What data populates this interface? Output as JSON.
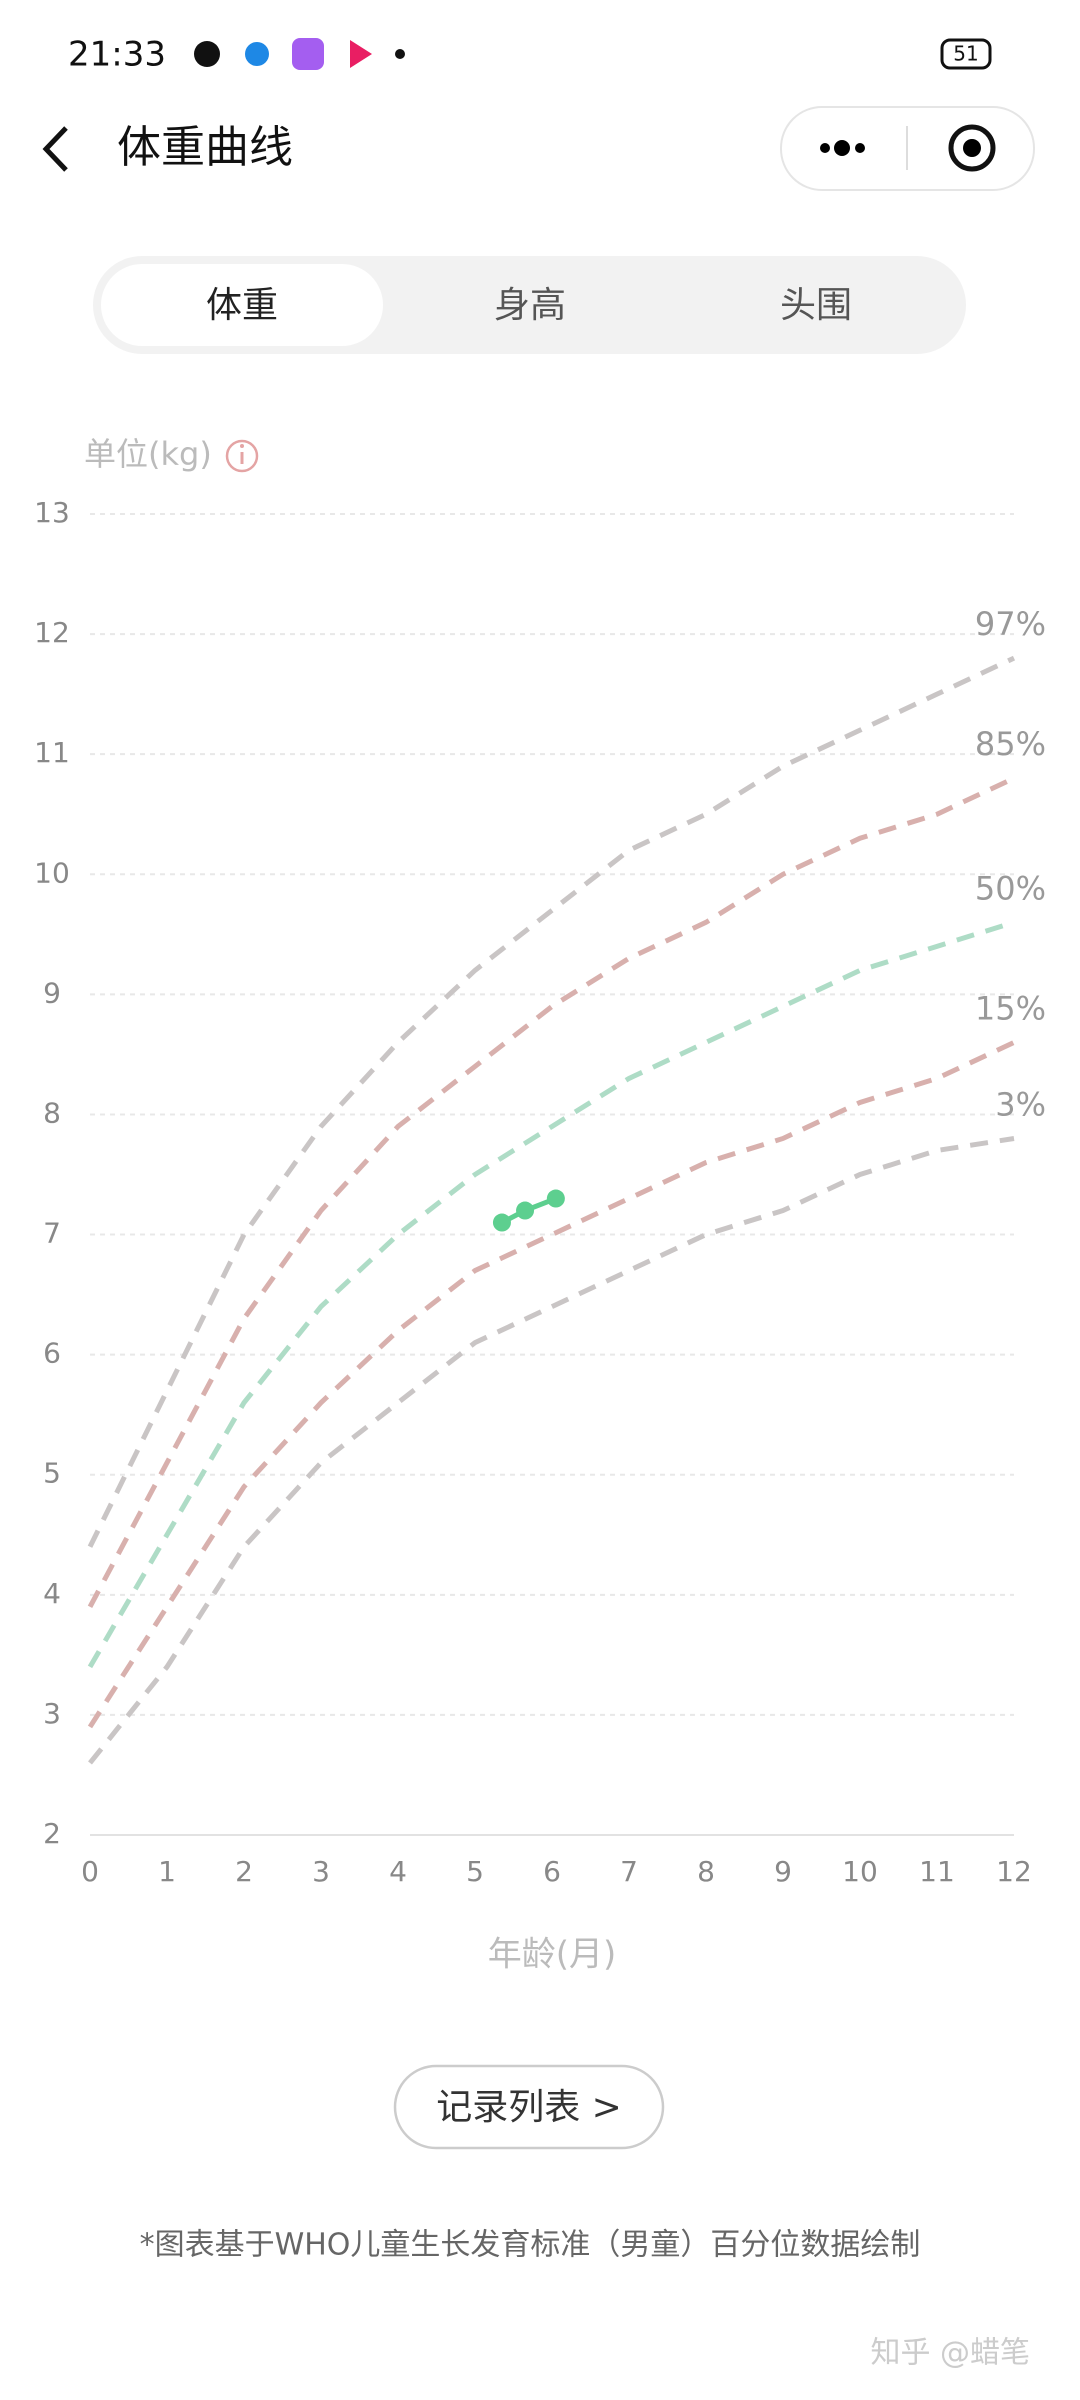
{
  "status_bar": {
    "time": "21:33",
    "battery": "51"
  },
  "nav": {
    "title": "体重曲线"
  },
  "tabs": [
    "体重",
    "身高",
    "头围"
  ],
  "chart_data": {
    "type": "line",
    "y_label": "单位(kg)",
    "x_label": "年龄(月)",
    "xlim": [
      0,
      12
    ],
    "ylim": [
      2,
      13
    ],
    "xticks": [
      0,
      1,
      2,
      3,
      4,
      5,
      6,
      7,
      8,
      9,
      10,
      11,
      12
    ],
    "yticks": [
      2,
      3,
      4,
      5,
      6,
      7,
      8,
      9,
      10,
      11,
      12,
      13
    ],
    "grid": true,
    "series": [
      {
        "name": "97%",
        "color": "#c9c5c5",
        "dashed": true,
        "x": [
          0,
          1,
          2,
          3,
          4,
          5,
          6,
          7,
          8,
          9,
          10,
          11,
          12
        ],
        "values": [
          4.4,
          5.7,
          7.0,
          7.9,
          8.6,
          9.2,
          9.7,
          10.2,
          10.5,
          10.9,
          11.2,
          11.5,
          11.8
        ]
      },
      {
        "name": "85%",
        "color": "#d8b0ad",
        "dashed": true,
        "x": [
          0,
          1,
          2,
          3,
          4,
          5,
          6,
          7,
          8,
          9,
          10,
          11,
          12
        ],
        "values": [
          3.9,
          5.1,
          6.3,
          7.2,
          7.9,
          8.4,
          8.9,
          9.3,
          9.6,
          10.0,
          10.3,
          10.5,
          10.8
        ]
      },
      {
        "name": "50%",
        "color": "#aedcc6",
        "dashed": true,
        "x": [
          0,
          1,
          2,
          3,
          4,
          5,
          6,
          7,
          8,
          9,
          10,
          11,
          12
        ],
        "values": [
          3.4,
          4.5,
          5.6,
          6.4,
          7.0,
          7.5,
          7.9,
          8.3,
          8.6,
          8.9,
          9.2,
          9.4,
          9.6
        ]
      },
      {
        "name": "15%",
        "color": "#d8b0ad",
        "dashed": true,
        "x": [
          0,
          1,
          2,
          3,
          4,
          5,
          6,
          7,
          8,
          9,
          10,
          11,
          12
        ],
        "values": [
          2.9,
          3.9,
          4.9,
          5.6,
          6.2,
          6.7,
          7.0,
          7.3,
          7.6,
          7.8,
          8.1,
          8.3,
          8.6
        ]
      },
      {
        "name": "3%",
        "color": "#c9c5c5",
        "dashed": true,
        "x": [
          0,
          1,
          2,
          3,
          4,
          5,
          6,
          7,
          8,
          9,
          10,
          11,
          12
        ],
        "values": [
          2.6,
          3.4,
          4.4,
          5.1,
          5.6,
          6.1,
          6.4,
          6.7,
          7.0,
          7.2,
          7.5,
          7.7,
          7.8
        ]
      },
      {
        "color": "#5dcf8f",
        "dashed": false,
        "x": [
          5.35,
          5.65,
          6.05
        ],
        "values": [
          7.1,
          7.2,
          7.3
        ]
      }
    ]
  },
  "button": "记录列表 >",
  "footnote": "*图表基于WHO儿童生长发育标准（男童）百分位数据绘制",
  "watermark": "知乎 @蜡笔"
}
